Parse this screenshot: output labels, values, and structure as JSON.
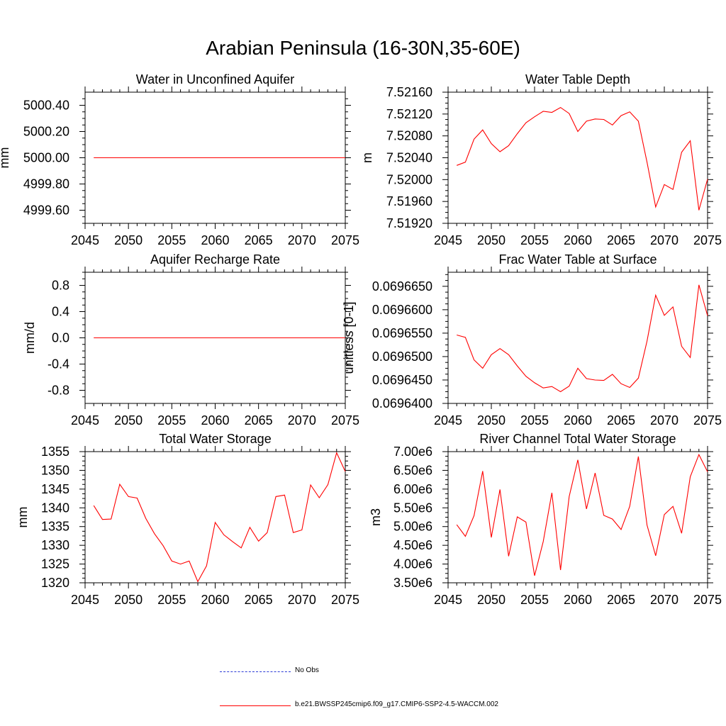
{
  "title": "Arabian Peninsula (16-30N,35-60E)",
  "colors": {
    "model_line": "#ff0000",
    "obs_line": "#2b3bd6",
    "axis": "#000000"
  },
  "legend": {
    "obs_label": "No Obs",
    "model_label": "b.e21.BWSSP245cmip6.f09_g17.CMIP6-SSP2-4.5-WACCM.002"
  },
  "chart_data": [
    {
      "type": "line",
      "title": "Water in Unconfined Aquifer",
      "xlabel": "",
      "ylabel": "mm",
      "xlim": [
        2045,
        2075
      ],
      "ylim": [
        4999.5,
        5000.5
      ],
      "xticks": [
        2045,
        2050,
        2055,
        2060,
        2065,
        2070,
        2075
      ],
      "xtick_labels": [
        "2045",
        "2050",
        "2055",
        "2060",
        "2065",
        "2070",
        "2075"
      ],
      "yticks": [
        4999.6,
        4999.8,
        5000.0,
        5000.2,
        5000.4
      ],
      "ytick_labels": [
        "4999.60",
        "4999.80",
        "5000.00",
        "5000.20",
        "5000.40"
      ],
      "series": [
        {
          "name": "b.e21.BWSSP245cmip6.f09_g17.CMIP6-SSP2-4.5-WACCM.002",
          "x": [
            2046,
            2075
          ],
          "y": [
            5000.0,
            5000.0
          ]
        }
      ]
    },
    {
      "type": "line",
      "title": "Water Table Depth",
      "xlabel": "",
      "ylabel": "m",
      "xlim": [
        2045,
        2075
      ],
      "ylim": [
        7.5192,
        7.5216
      ],
      "xticks": [
        2045,
        2050,
        2055,
        2060,
        2065,
        2070,
        2075
      ],
      "xtick_labels": [
        "2045",
        "2050",
        "2055",
        "2060",
        "2065",
        "2070",
        "2075"
      ],
      "yticks": [
        7.5192,
        7.5196,
        7.52,
        7.5204,
        7.5208,
        7.5212,
        7.5216
      ],
      "ytick_labels": [
        "7.51920",
        "7.51960",
        "7.52000",
        "7.52040",
        "7.52080",
        "7.52120",
        "7.52160"
      ],
      "series": [
        {
          "name": "b.e21.BWSSP245cmip6.f09_g17.CMIP6-SSP2-4.5-WACCM.002",
          "x": [
            2046,
            2047,
            2048,
            2049,
            2050,
            2051,
            2052,
            2053,
            2054,
            2055,
            2056,
            2057,
            2058,
            2059,
            2060,
            2061,
            2062,
            2063,
            2064,
            2065,
            2066,
            2067,
            2068,
            2069,
            2070,
            2071,
            2072,
            2073,
            2074,
            2075
          ],
          "y": [
            7.52026,
            7.52032,
            7.52074,
            7.52091,
            7.52066,
            7.52051,
            7.52062,
            7.52084,
            7.52104,
            7.52115,
            7.52125,
            7.52123,
            7.52132,
            7.52121,
            7.52088,
            7.52107,
            7.52111,
            7.5211,
            7.521,
            7.52117,
            7.52124,
            7.52107,
            7.52032,
            7.5195,
            7.51991,
            7.51982,
            7.5205,
            7.52071,
            7.51944,
            7.52001
          ]
        }
      ]
    },
    {
      "type": "line",
      "title": "Aquifer Recharge Rate",
      "xlabel": "",
      "ylabel": "mm/d",
      "xlim": [
        2045,
        2075
      ],
      "ylim": [
        -1.0,
        1.0
      ],
      "xticks": [
        2045,
        2050,
        2055,
        2060,
        2065,
        2070,
        2075
      ],
      "xtick_labels": [
        "2045",
        "2050",
        "2055",
        "2060",
        "2065",
        "2070",
        "2075"
      ],
      "yticks": [
        -0.8,
        -0.4,
        0.0,
        0.4,
        0.8
      ],
      "ytick_labels": [
        "-0.8",
        "-0.4",
        "0.0",
        "0.4",
        "0.8"
      ],
      "series": [
        {
          "name": "b.e21.BWSSP245cmip6.f09_g17.CMIP6-SSP2-4.5-WACCM.002",
          "x": [
            2046,
            2075
          ],
          "y": [
            0.0,
            0.0
          ]
        }
      ]
    },
    {
      "type": "line",
      "title": "Frac Water Table at Surface",
      "xlabel": "",
      "ylabel": "unitless [0-1]",
      "xlim": [
        2045,
        2075
      ],
      "ylim": [
        0.06964,
        0.069668
      ],
      "xticks": [
        2045,
        2050,
        2055,
        2060,
        2065,
        2070,
        2075
      ],
      "xtick_labels": [
        "2045",
        "2050",
        "2055",
        "2060",
        "2065",
        "2070",
        "2075"
      ],
      "yticks": [
        0.06964,
        0.069645,
        0.06965,
        0.069655,
        0.06966,
        0.069665
      ],
      "ytick_labels": [
        "0.0696400",
        "0.0696450",
        "0.0696500",
        "0.0696550",
        "0.0696600",
        "0.0696650"
      ],
      "series": [
        {
          "name": "b.e21.BWSSP245cmip6.f09_g17.CMIP6-SSP2-4.5-WACCM.002",
          "x": [
            2046,
            2047,
            2048,
            2049,
            2050,
            2051,
            2052,
            2053,
            2054,
            2055,
            2056,
            2057,
            2058,
            2059,
            2060,
            2061,
            2062,
            2063,
            2064,
            2065,
            2066,
            2067,
            2068,
            2069,
            2070,
            2071,
            2072,
            2073,
            2074,
            2075
          ],
          "y": [
            0.0696546,
            0.0696541,
            0.0696493,
            0.0696475,
            0.0696504,
            0.0696517,
            0.0696504,
            0.069648,
            0.0696458,
            0.0696444,
            0.0696433,
            0.0696436,
            0.0696425,
            0.0696437,
            0.0696475,
            0.0696453,
            0.069645,
            0.0696449,
            0.0696462,
            0.0696442,
            0.0696434,
            0.0696454,
            0.0696533,
            0.0696631,
            0.0696588,
            0.0696606,
            0.0696522,
            0.0696498,
            0.0696653,
            0.0696587
          ]
        }
      ]
    },
    {
      "type": "line",
      "title": "Total Water Storage",
      "xlabel": "",
      "ylabel": "mm",
      "xlim": [
        2045,
        2075
      ],
      "ylim": [
        1320,
        1355
      ],
      "xticks": [
        2045,
        2050,
        2055,
        2060,
        2065,
        2070,
        2075
      ],
      "xtick_labels": [
        "2045",
        "2050",
        "2055",
        "2060",
        "2065",
        "2070",
        "2075"
      ],
      "yticks": [
        1320,
        1325,
        1330,
        1335,
        1340,
        1345,
        1350,
        1355
      ],
      "ytick_labels": [
        "1320",
        "1325",
        "1330",
        "1335",
        "1340",
        "1345",
        "1350",
        "1355"
      ],
      "series": [
        {
          "name": "b.e21.BWSSP245cmip6.f09_g17.CMIP6-SSP2-4.5-WACCM.002",
          "x": [
            2046,
            2047,
            2048,
            2049,
            2050,
            2051,
            2052,
            2053,
            2054,
            2055,
            2056,
            2057,
            2058,
            2059,
            2060,
            2061,
            2062,
            2063,
            2064,
            2065,
            2066,
            2067,
            2068,
            2069,
            2070,
            2071,
            2072,
            2073,
            2074,
            2075
          ],
          "y": [
            1340.6,
            1336.9,
            1337.0,
            1346.3,
            1343.0,
            1342.6,
            1337.2,
            1333.1,
            1329.9,
            1325.8,
            1325.0,
            1325.8,
            1320.3,
            1324.5,
            1336.1,
            1332.8,
            1331.0,
            1329.3,
            1334.8,
            1331.1,
            1333.4,
            1343.0,
            1343.4,
            1333.4,
            1334.1,
            1346.1,
            1342.7,
            1346.2,
            1354.7,
            1349.7
          ]
        }
      ]
    },
    {
      "type": "line",
      "title": "River Channel Total Water Storage",
      "xlabel": "",
      "ylabel": "m3",
      "xlim": [
        2045,
        2075
      ],
      "ylim": [
        3500000,
        7000000
      ],
      "xticks": [
        2045,
        2050,
        2055,
        2060,
        2065,
        2070,
        2075
      ],
      "xtick_labels": [
        "2045",
        "2050",
        "2055",
        "2060",
        "2065",
        "2070",
        "2075"
      ],
      "yticks": [
        3500000,
        4000000,
        4500000,
        5000000,
        5500000,
        6000000,
        6500000,
        7000000
      ],
      "ytick_labels": [
        "3.50e6",
        "4.00e6",
        "4.50e6",
        "5.00e6",
        "5.50e6",
        "6.00e6",
        "6.50e6",
        "7.00e6"
      ],
      "series": [
        {
          "name": "b.e21.BWSSP245cmip6.f09_g17.CMIP6-SSP2-4.5-WACCM.002",
          "x": [
            2046,
            2047,
            2048,
            2049,
            2050,
            2051,
            2052,
            2053,
            2054,
            2055,
            2056,
            2057,
            2058,
            2059,
            2060,
            2061,
            2062,
            2063,
            2064,
            2065,
            2066,
            2067,
            2068,
            2069,
            2070,
            2071,
            2072,
            2073,
            2074,
            2075
          ],
          "y": [
            5050000,
            4740000,
            5290000,
            6480000,
            4710000,
            5990000,
            4210000,
            5260000,
            5120000,
            3690000,
            4600000,
            5900000,
            3840000,
            5800000,
            6780000,
            5470000,
            6430000,
            5300000,
            5200000,
            4920000,
            5540000,
            6870000,
            5040000,
            4220000,
            5320000,
            5540000,
            4820000,
            6330000,
            6920000,
            6460000
          ]
        }
      ]
    }
  ]
}
